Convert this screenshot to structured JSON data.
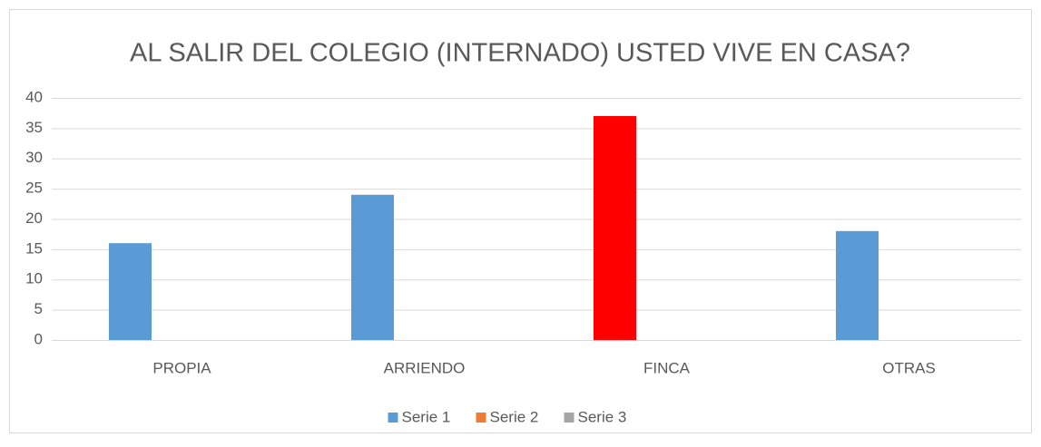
{
  "chart_data": {
    "type": "bar",
    "title": "AL  SALIR DEL COLEGIO (INTERNADO) USTED VIVE EN CASA?",
    "categories": [
      "PROPIA",
      "ARRIENDO",
      "FINCA",
      "OTRAS"
    ],
    "series": [
      {
        "name": "Serie 1",
        "color": "#5b9bd5",
        "point_colors": [
          "#5b9bd5",
          "#5b9bd5",
          "#ff0000",
          "#5b9bd5"
        ],
        "values": [
          16,
          24,
          37,
          18
        ]
      },
      {
        "name": "Serie 2",
        "color": "#ed7d31",
        "values": [
          null,
          null,
          null,
          null
        ]
      },
      {
        "name": "Serie 3",
        "color": "#a5a5a5",
        "values": [
          null,
          null,
          null,
          null
        ]
      }
    ],
    "ylim": [
      0,
      40
    ],
    "yticks": [
      0,
      5,
      10,
      15,
      20,
      25,
      30,
      35,
      40
    ],
    "grid": true,
    "legend": "bottom"
  }
}
